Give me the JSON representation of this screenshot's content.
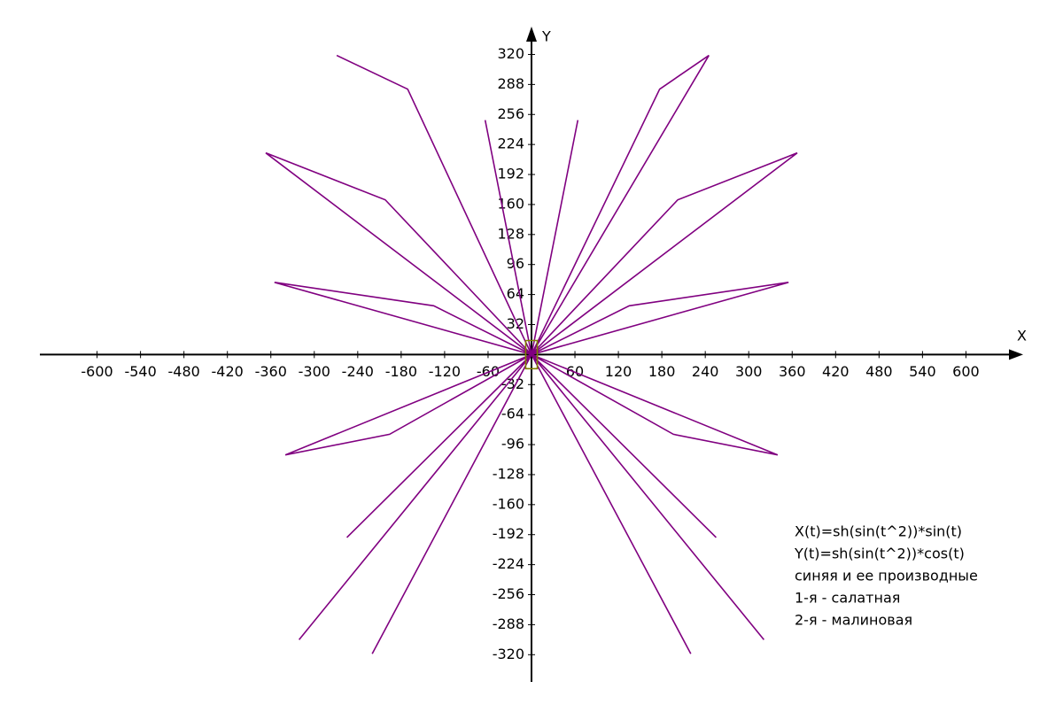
{
  "chart_data": {
    "type": "line",
    "x_label": "X",
    "y_label": "Y",
    "xlim": [
      -679,
      679
    ],
    "ylim": [
      -349,
      345
    ],
    "xticks": [
      -600,
      -540,
      -480,
      -420,
      -360,
      -300,
      -240,
      -180,
      -120,
      -60,
      60,
      120,
      180,
      240,
      300,
      360,
      420,
      480,
      540,
      600
    ],
    "yticks": [
      -320,
      -288,
      -256,
      -224,
      -192,
      -160,
      -128,
      -96,
      -64,
      -32,
      32,
      64,
      96,
      128,
      160,
      192,
      224,
      256,
      288,
      320
    ],
    "series": [
      {
        "color": "#800080",
        "x": [
          -269,
          -171,
          0,
          245,
          177,
          0,
          -367,
          -202,
          0,
          367,
          202,
          0,
          -355,
          -135,
          0,
          355,
          135,
          0,
          -340,
          -196,
          0,
          340,
          196,
          0,
          -321,
          0,
          321,
          0,
          -220,
          0,
          220,
          0,
          -255,
          0,
          255,
          0,
          -64,
          0,
          64,
          0
        ],
        "y": [
          319,
          283,
          0,
          319,
          283,
          0,
          215,
          165,
          0,
          215,
          165,
          0,
          77,
          52,
          0,
          77,
          52,
          0,
          -107,
          -85,
          0,
          -107,
          -85,
          0,
          -304,
          0,
          -304,
          0,
          -319,
          0,
          -319,
          0,
          -195,
          0,
          -195,
          0,
          250,
          0,
          250,
          0
        ]
      },
      {
        "color": "#808000",
        "x": [
          -8,
          8,
          8,
          -8,
          -8
        ],
        "y": [
          15,
          15,
          -15,
          -15,
          15
        ]
      }
    ],
    "annotations": [
      "X(t)=sh(sin(t^2))*sin(t)",
      "Y(t)=sh(sin(t^2))*cos(t)",
      "синяя и ее производные",
      "1-я - салатная",
      "2-я - малиновая"
    ]
  }
}
